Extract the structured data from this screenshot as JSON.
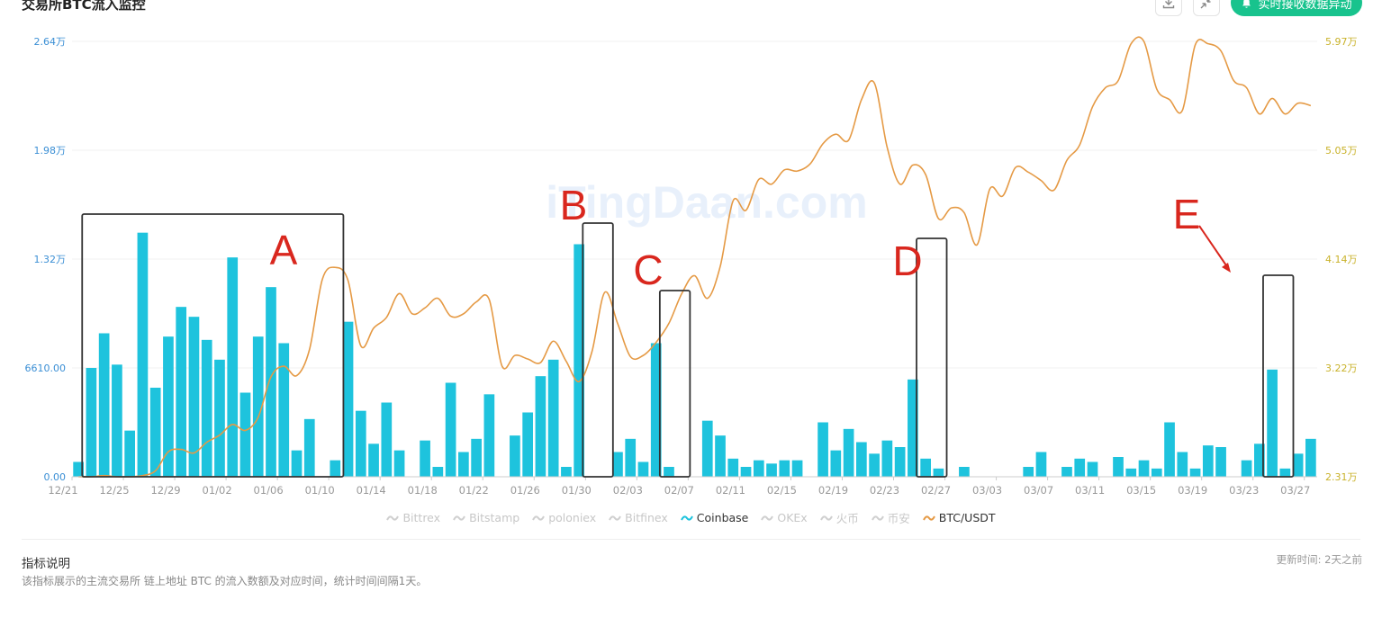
{
  "header": {
    "title": "交易所BTC流入监控",
    "live_button_label": "实时接收数据异动"
  },
  "colors": {
    "bar": "#1ec3dd",
    "line": "#e59a45",
    "left_axis": "#3b8fd5",
    "right_axis": "#c9b22a",
    "annotation": "#d9271e",
    "box": "#333333",
    "accent_button": "#18c38d"
  },
  "watermark": "iTingDaan.com",
  "legend": [
    {
      "name": "Bittrex",
      "active": false
    },
    {
      "name": "Bitstamp",
      "active": false
    },
    {
      "name": "poloniex",
      "active": false
    },
    {
      "name": "Bitfinex",
      "active": false
    },
    {
      "name": "Coinbase",
      "active": true,
      "color": "#1ec3dd"
    },
    {
      "name": "OKEx",
      "active": false
    },
    {
      "name": "火币",
      "active": false
    },
    {
      "name": "币安",
      "active": false
    },
    {
      "name": "BTC/USDT",
      "active": true,
      "color": "#e59a45"
    }
  ],
  "indicator": {
    "title": "指标说明",
    "description": "该指标展示的主流交易所 链上地址 BTC 的流入数额及对应时间，统计时间间隔1天。",
    "updated": "更新时间: 2天之前"
  },
  "chart_data": {
    "type": "bar+line",
    "x_tick_labels": [
      "12/21",
      "12/25",
      "12/29",
      "01/02",
      "01/06",
      "01/10",
      "01/14",
      "01/18",
      "01/22",
      "01/26",
      "01/30",
      "02/03",
      "02/07",
      "02/11",
      "02/15",
      "02/19",
      "02/23",
      "02/27",
      "03/03",
      "03/07",
      "03/11",
      "03/15",
      "03/19",
      "03/23",
      "03/27"
    ],
    "y_left_ticks": [
      "0.00",
      "6610.00",
      "1.32万",
      "1.98万",
      "2.64万"
    ],
    "y_right_ticks": [
      "2.31万",
      "3.22万",
      "4.14万",
      "5.05万",
      "5.97万"
    ],
    "ylim_left": [
      0,
      26400
    ],
    "ylim_right": [
      23100,
      59700
    ],
    "series": [
      {
        "name": "Coinbase",
        "type": "bar",
        "axis": "left",
        "values": [
          900,
          6600,
          8700,
          6800,
          2800,
          14800,
          5400,
          8500,
          10300,
          9700,
          8300,
          7100,
          13300,
          5100,
          8500,
          11500,
          8100,
          1600,
          3500,
          0,
          1000,
          9400,
          4000,
          2000,
          4500,
          1600,
          0,
          2200,
          600,
          5700,
          1500,
          2300,
          5000,
          0,
          2500,
          3900,
          6100,
          7100,
          600,
          14100,
          0,
          0,
          1500,
          2300,
          900,
          8100,
          600,
          0,
          0,
          3400,
          2500,
          1100,
          600,
          1000,
          800,
          1000,
          1000,
          0,
          3300,
          1600,
          2900,
          2100,
          1400,
          2200,
          1800,
          5900,
          1100,
          500,
          0,
          600,
          0,
          0,
          0,
          0,
          600,
          1500,
          0,
          600,
          1100,
          900,
          0,
          1200,
          500,
          1000,
          500,
          3300,
          1500,
          500,
          1900,
          1800,
          0,
          1000,
          2000,
          6500,
          500,
          1400,
          2300
        ]
      },
      {
        "name": "BTC/USDT",
        "type": "line",
        "axis": "right",
        "values": [
          23100,
          23100,
          23200,
          23100,
          23100,
          23200,
          23600,
          25200,
          25400,
          25100,
          26000,
          26600,
          27500,
          27000,
          28100,
          31500,
          32400,
          31600,
          33800,
          39700,
          40700,
          39600,
          34100,
          35600,
          36500,
          38500,
          36800,
          37300,
          38100,
          36600,
          36800,
          37800,
          38000,
          32400,
          33300,
          33000,
          32700,
          34500,
          32800,
          31100,
          33600,
          38600,
          36000,
          33200,
          33300,
          34400,
          36000,
          38500,
          40000,
          38100,
          40800,
          46300,
          45500,
          48100,
          47700,
          48900,
          48800,
          49400,
          51100,
          51900,
          51400,
          54800,
          56200,
          50800,
          47700,
          49300,
          48500,
          44800,
          45700,
          45300,
          42600,
          47300,
          46700,
          49100,
          48700,
          48000,
          47200,
          49700,
          51000,
          54200,
          55800,
          56400,
          59500,
          59700,
          55700,
          54800,
          53900,
          59400,
          59500,
          58900,
          56400,
          55800,
          53600,
          54900,
          53600,
          54500,
          54300
        ]
      }
    ],
    "annotations": [
      {
        "label": "A",
        "from": "12/22",
        "to": "01/10"
      },
      {
        "label": "B",
        "from": "01/30",
        "to": "01/31"
      },
      {
        "label": "C",
        "from": "02/05",
        "to": "02/06"
      },
      {
        "label": "D",
        "from": "02/25",
        "to": "02/26"
      },
      {
        "label": "E",
        "from": "03/24",
        "to": "03/25"
      }
    ],
    "grid": true
  }
}
